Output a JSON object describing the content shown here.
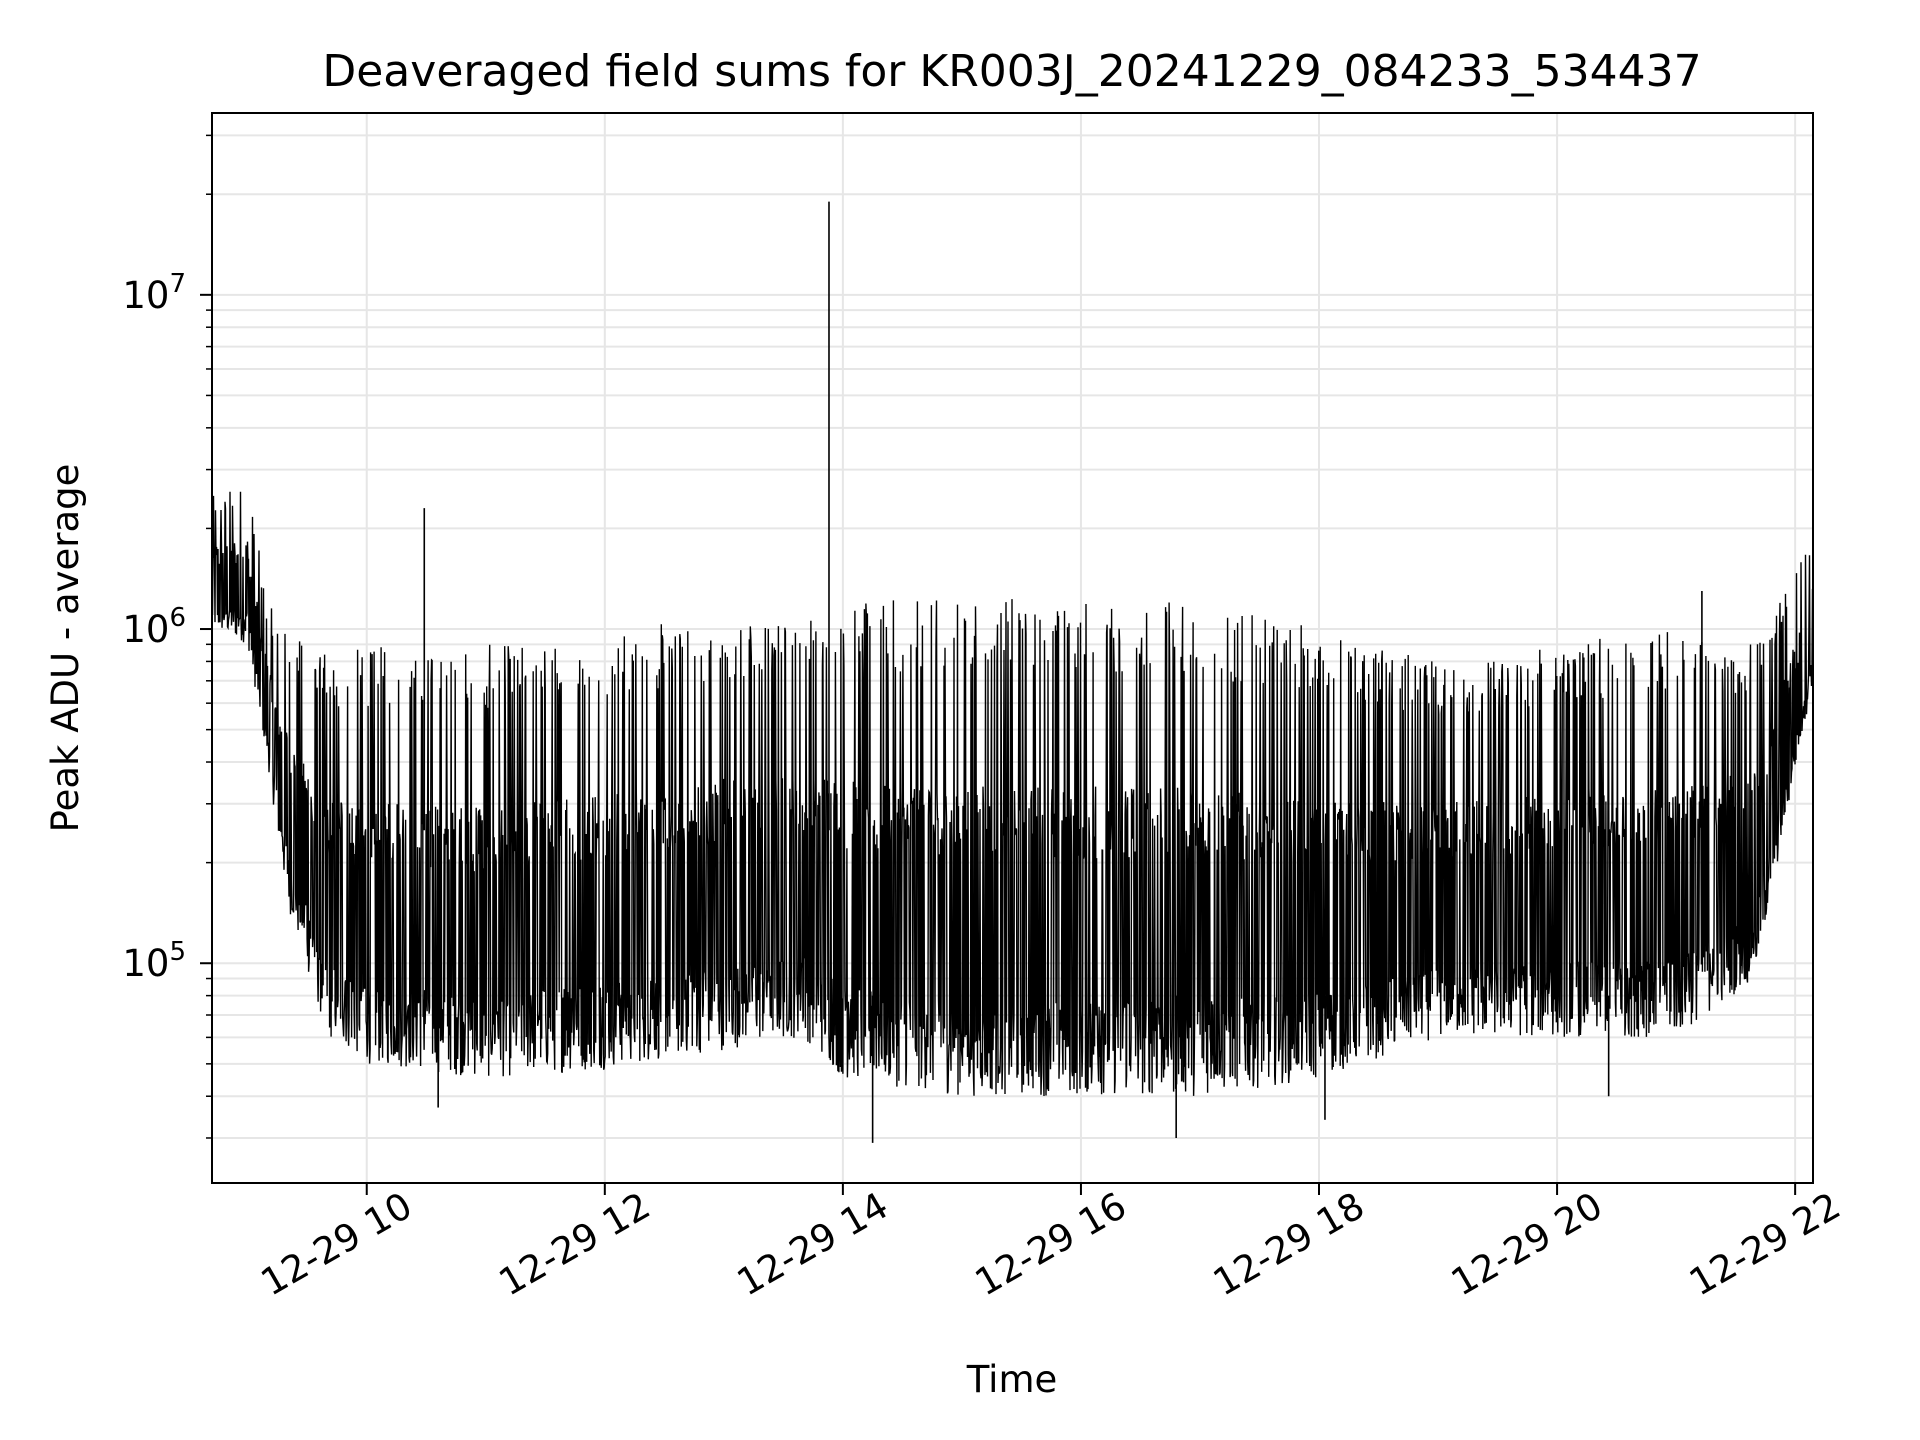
{
  "chart_data": {
    "type": "line",
    "title": "Deaveraged field sums for KR003J_20241229_084233_534437",
    "xlabel": "Time",
    "ylabel": "Peak ADU - average",
    "yscale": "log",
    "ylim": [
      22000,
      35000000
    ],
    "xlim": [
      "2024-12-29 08:42",
      "2024-12-29 22:09"
    ],
    "grid": true,
    "line_color": "#000000",
    "grid_color": "#e6e6e6",
    "x_ticks": [
      {
        "value": "2024-12-29 10:00",
        "label": "12-29 10"
      },
      {
        "value": "2024-12-29 12:00",
        "label": "12-29 12"
      },
      {
        "value": "2024-12-29 14:00",
        "label": "12-29 14"
      },
      {
        "value": "2024-12-29 16:00",
        "label": "12-29 16"
      },
      {
        "value": "2024-12-29 18:00",
        "label": "12-29 18"
      },
      {
        "value": "2024-12-29 20:00",
        "label": "12-29 20"
      },
      {
        "value": "2024-12-29 22:00",
        "label": "12-29 22"
      }
    ],
    "y_ticks": [
      {
        "value": 100000,
        "base": "10",
        "exp": "5"
      },
      {
        "value": 1000000,
        "base": "10",
        "exp": "6"
      },
      {
        "value": 10000000,
        "base": "10",
        "exp": "7"
      }
    ],
    "series": [
      {
        "envelope": [
          {
            "time": "2024-12-29 08:42",
            "low": 1000000,
            "high": 2500000
          },
          {
            "time": "2024-12-29 09:00",
            "low": 900000,
            "high": 2800000
          },
          {
            "time": "2024-12-29 09:10",
            "low": 400000,
            "high": 1200000
          },
          {
            "time": "2024-12-29 09:20",
            "low": 150000,
            "high": 1000000
          },
          {
            "time": "2024-12-29 09:40",
            "low": 60000,
            "high": 850000
          },
          {
            "time": "2024-12-29 10:00",
            "low": 50000,
            "high": 900000
          },
          {
            "time": "2024-12-29 11:00",
            "low": 45000,
            "high": 900000
          },
          {
            "time": "2024-12-29 12:00",
            "low": 48000,
            "high": 1000000
          },
          {
            "time": "2024-12-29 13:00",
            "low": 55000,
            "high": 1100000
          },
          {
            "time": "2024-12-29 13:40",
            "low": 60000,
            "high": 1150000
          },
          {
            "time": "2024-12-29 14:00",
            "low": 45000,
            "high": 1200000
          },
          {
            "time": "2024-12-29 15:00",
            "low": 40000,
            "high": 1250000
          },
          {
            "time": "2024-12-29 16:00",
            "low": 40000,
            "high": 1250000
          },
          {
            "time": "2024-12-29 17:00",
            "low": 40000,
            "high": 1200000
          },
          {
            "time": "2024-12-29 18:00",
            "low": 45000,
            "high": 1000000
          },
          {
            "time": "2024-12-29 19:00",
            "low": 60000,
            "high": 800000
          },
          {
            "time": "2024-12-29 20:00",
            "low": 60000,
            "high": 900000
          },
          {
            "time": "2024-12-29 21:00",
            "low": 60000,
            "high": 1000000
          },
          {
            "time": "2024-12-29 21:40",
            "low": 90000,
            "high": 900000
          },
          {
            "time": "2024-12-29 22:09",
            "low": 700000,
            "high": 2000000
          }
        ],
        "spikes": [
          {
            "time": "2024-12-29 10:29",
            "value": 2300000
          },
          {
            "time": "2024-12-29 13:53",
            "value": 19000000
          },
          {
            "time": "2024-12-29 21:13",
            "value": 1300000
          }
        ],
        "dips": [
          {
            "time": "2024-12-29 10:36",
            "value": 37000
          },
          {
            "time": "2024-12-29 14:15",
            "value": 29000
          },
          {
            "time": "2024-12-29 16:48",
            "value": 30000
          },
          {
            "time": "2024-12-29 18:03",
            "value": 34000
          },
          {
            "time": "2024-12-29 20:26",
            "value": 40000
          }
        ]
      }
    ]
  }
}
